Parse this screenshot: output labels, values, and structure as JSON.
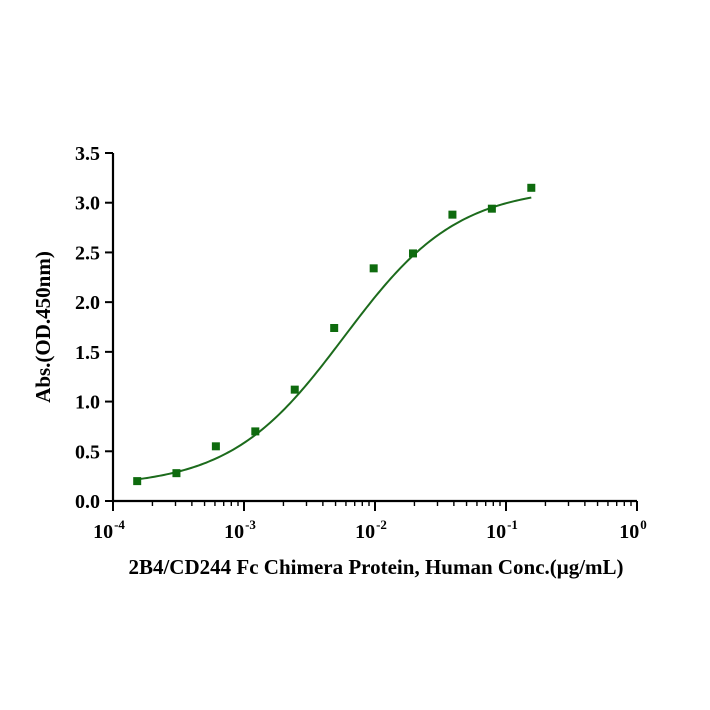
{
  "chart_data": {
    "type": "scatter",
    "title": "",
    "xlabel": "2B4/CD244 Fc Chimera Protein, Human  Conc.(μg/mL)",
    "ylabel": "Abs.(OD.450nm)",
    "x_scale": "log",
    "xlim": [
      0.0001,
      1
    ],
    "ylim": [
      0,
      3.5
    ],
    "x_ticks": [
      {
        "base": "10",
        "exp": "-4"
      },
      {
        "base": "10",
        "exp": "-3"
      },
      {
        "base": "10",
        "exp": "-2"
      },
      {
        "base": "10",
        "exp": "-1"
      },
      {
        "base": "10",
        "exp": "0"
      }
    ],
    "y_ticks": [
      "0.0",
      "0.5",
      "1.0",
      "1.5",
      "2.0",
      "2.5",
      "3.0",
      "3.5"
    ],
    "grid": false,
    "legend": "none",
    "series": [
      {
        "marker": "square",
        "color": "#0e6b0e",
        "x": [
          0.000153,
          0.000305,
          0.00061,
          0.00122,
          0.00244,
          0.00488,
          0.00977,
          0.0195,
          0.039,
          0.078,
          0.156
        ],
        "y": [
          0.2,
          0.28,
          0.55,
          0.7,
          1.12,
          1.74,
          2.34,
          2.49,
          2.88,
          2.94,
          3.15
        ]
      }
    ],
    "fit_curve": {
      "color": "#1c6b1c",
      "model": "4PL",
      "bottom": 0.14,
      "top": 3.16,
      "ec50": 0.0058,
      "hill": 1.0,
      "x_range": [
        0.000153,
        0.156
      ]
    }
  }
}
